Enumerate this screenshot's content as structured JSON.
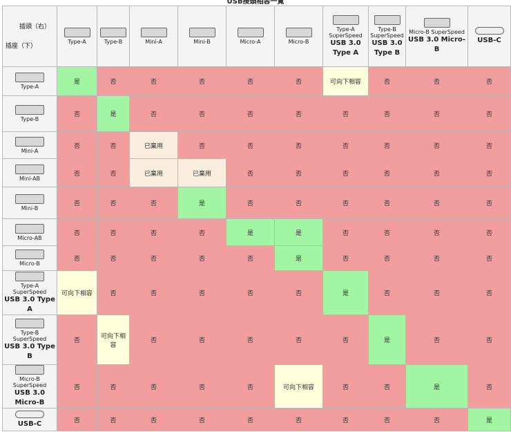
{
  "title": "USB接頭相容一覽",
  "corner": {
    "plug": "插頭（右）",
    "socket": "插座（下）"
  },
  "columns": [
    {
      "caption": "Type-A"
    },
    {
      "caption": "Type-B"
    },
    {
      "caption": "Mini-A"
    },
    {
      "caption": "Mini-B"
    },
    {
      "caption": "Micro-A"
    },
    {
      "caption": "Micro-B"
    },
    {
      "caption": "Type-A SuperSpeed",
      "label": "USB 3.0 Type A"
    },
    {
      "caption": "Type-B SuperSpeed",
      "label": "USB 3.0 Type B"
    },
    {
      "caption": "Micro-B SuperSpeed",
      "label": "USB 3.0 Micro-B"
    },
    {
      "label": "USB-C"
    }
  ],
  "rows": [
    {
      "caption": "Type-A",
      "cells": [
        "是",
        "否",
        "否",
        "否",
        "否",
        "否",
        "可向下相容",
        "否",
        "否",
        "否"
      ]
    },
    {
      "caption": "Type-B",
      "cells": [
        "否",
        "是",
        "否",
        "否",
        "否",
        "否",
        "否",
        "否",
        "否",
        "否"
      ]
    },
    {
      "caption": "Mini-A",
      "cells": [
        "否",
        "否",
        "已棄用",
        "否",
        "否",
        "否",
        "否",
        "否",
        "否",
        "否"
      ]
    },
    {
      "caption": "Mini-AB",
      "cells": [
        "否",
        "否",
        "已棄用",
        "已棄用",
        "否",
        "否",
        "否",
        "否",
        "否",
        "否"
      ]
    },
    {
      "caption": "Mini-B",
      "cells": [
        "否",
        "否",
        "否",
        "是",
        "否",
        "否",
        "否",
        "否",
        "否",
        "否"
      ]
    },
    {
      "caption": "Micro-AB",
      "cells": [
        "否",
        "否",
        "否",
        "否",
        "是",
        "是",
        "否",
        "否",
        "否",
        "否"
      ]
    },
    {
      "caption": "Micro-B",
      "cells": [
        "否",
        "否",
        "否",
        "否",
        "否",
        "是",
        "否",
        "否",
        "否",
        "否"
      ]
    },
    {
      "caption": "Type-A SuperSpeed",
      "label": "USB 3.0 Type A",
      "cells": [
        "可向下相容",
        "否",
        "否",
        "否",
        "否",
        "否",
        "是",
        "否",
        "否",
        "否"
      ]
    },
    {
      "caption": "Type-B SuperSpeed",
      "label": "USB 3.0 Type B",
      "cells": [
        "否",
        "可向下相容",
        "否",
        "否",
        "否",
        "否",
        "否",
        "是",
        "否",
        "否"
      ]
    },
    {
      "caption": "Micro-B SuperSpeed",
      "label": "USB 3.0 Micro-B",
      "cells": [
        "否",
        "否",
        "否",
        "否",
        "否",
        "可向下相容",
        "否",
        "否",
        "是",
        "否"
      ]
    },
    {
      "label": "USB-C",
      "cells": [
        "否",
        "否",
        "否",
        "否",
        "否",
        "否",
        "否",
        "否",
        "否",
        "是"
      ]
    }
  ]
}
